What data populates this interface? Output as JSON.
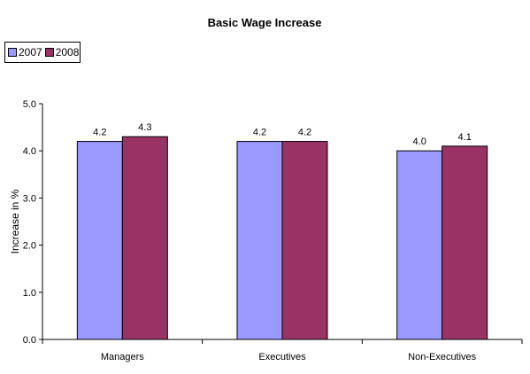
{
  "chart_data": {
    "type": "bar",
    "title": "Basic Wage Increase",
    "xlabel": "",
    "ylabel": "Increase in %",
    "categories": [
      "Managers",
      "Executives",
      "Non-Executives"
    ],
    "series": [
      {
        "name": "2007",
        "values": [
          4.2,
          4.2,
          4.0
        ],
        "color": "#9999ff"
      },
      {
        "name": "2008",
        "values": [
          4.3,
          4.2,
          4.1
        ],
        "color": "#993366"
      }
    ],
    "ylim": [
      0,
      5
    ],
    "yticks": [
      "0.0",
      "1.0",
      "2.0",
      "3.0",
      "4.0",
      "5.0"
    ],
    "data_labels": [
      [
        "4.2",
        "4.2",
        "4.0"
      ],
      [
        "4.3",
        "4.2",
        "4.1"
      ]
    ],
    "grid": false,
    "legend_position": "top-left"
  }
}
